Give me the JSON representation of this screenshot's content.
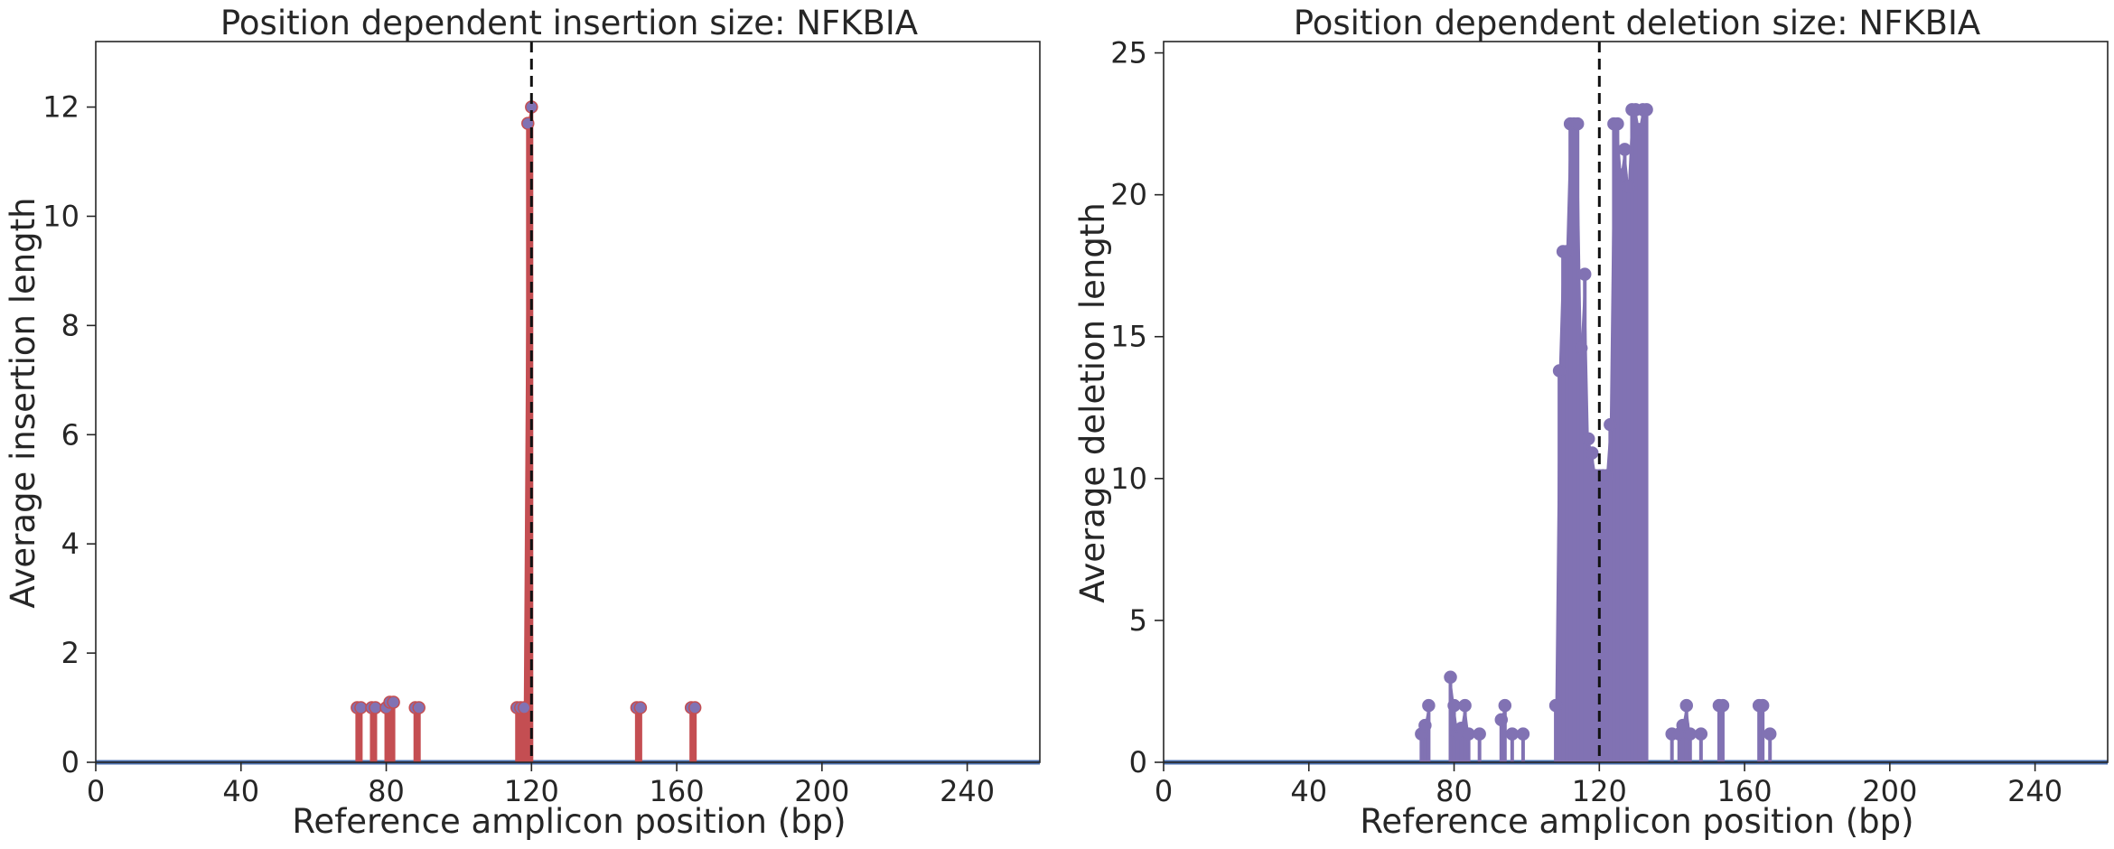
{
  "chart_data": [
    {
      "type": "stem",
      "title": "Position dependent insertion size: NFKBIA",
      "xlabel": "Reference amplicon position (bp)",
      "ylabel": "Average insertion length",
      "xlim": [
        0,
        260
      ],
      "ylim": [
        0,
        13.2
      ],
      "xticks": [
        0,
        40,
        80,
        120,
        160,
        200,
        240
      ],
      "yticks": [
        0,
        2,
        4,
        6,
        8,
        10,
        12
      ],
      "grid": false,
      "cut_position": 120,
      "color": "#c44e52",
      "marker_color": "#8172b3",
      "baseline_color": "#4c72b0",
      "points": [
        {
          "x": 72,
          "y": 1
        },
        {
          "x": 73,
          "y": 1
        },
        {
          "x": 76,
          "y": 1
        },
        {
          "x": 77,
          "y": 1
        },
        {
          "x": 80,
          "y": 1
        },
        {
          "x": 81,
          "y": 1.1
        },
        {
          "x": 82,
          "y": 1.1
        },
        {
          "x": 88,
          "y": 1
        },
        {
          "x": 89,
          "y": 1
        },
        {
          "x": 116,
          "y": 1
        },
        {
          "x": 117,
          "y": 1
        },
        {
          "x": 118,
          "y": 1
        },
        {
          "x": 119,
          "y": 11.7
        },
        {
          "x": 120,
          "y": 12
        },
        {
          "x": 149,
          "y": 1
        },
        {
          "x": 150,
          "y": 1
        },
        {
          "x": 164,
          "y": 1
        },
        {
          "x": 165,
          "y": 1
        }
      ]
    },
    {
      "type": "stem",
      "title": "Position dependent deletion size: NFKBIA",
      "xlabel": "Reference amplicon position (bp)",
      "ylabel": "Average deletion length",
      "xlim": [
        0,
        260
      ],
      "ylim": [
        0,
        25.4
      ],
      "xticks": [
        0,
        40,
        80,
        120,
        160,
        200,
        240
      ],
      "yticks": [
        0,
        5,
        10,
        15,
        20,
        25
      ],
      "grid": false,
      "cut_position": 120,
      "color": "#8172b3",
      "marker_color": "#8172b3",
      "baseline_color": "#4c72b0",
      "points": [
        {
          "x": 71,
          "y": 1
        },
        {
          "x": 72,
          "y": 1.3
        },
        {
          "x": 73,
          "y": 2
        },
        {
          "x": 79,
          "y": 3
        },
        {
          "x": 80,
          "y": 2
        },
        {
          "x": 81,
          "y": 1
        },
        {
          "x": 82,
          "y": 1.2
        },
        {
          "x": 83,
          "y": 2
        },
        {
          "x": 84,
          "y": 1
        },
        {
          "x": 87,
          "y": 1
        },
        {
          "x": 93,
          "y": 1.5
        },
        {
          "x": 94,
          "y": 2
        },
        {
          "x": 96,
          "y": 1
        },
        {
          "x": 99,
          "y": 1
        },
        {
          "x": 108,
          "y": 2
        },
        {
          "x": 109,
          "y": 13.8
        },
        {
          "x": 110,
          "y": 18
        },
        {
          "x": 111,
          "y": 18
        },
        {
          "x": 112,
          "y": 22.5
        },
        {
          "x": 113,
          "y": 22.5
        },
        {
          "x": 114,
          "y": 22.5
        },
        {
          "x": 115,
          "y": 14.6
        },
        {
          "x": 116,
          "y": 17.2
        },
        {
          "x": 117,
          "y": 11.4
        },
        {
          "x": 118,
          "y": 10.9
        },
        {
          "x": 119,
          "y": 10.1
        },
        {
          "x": 120,
          "y": 10.1
        },
        {
          "x": 121,
          "y": 10.1
        },
        {
          "x": 122,
          "y": 10.1
        },
        {
          "x": 123,
          "y": 11.9
        },
        {
          "x": 124,
          "y": 22.5
        },
        {
          "x": 125,
          "y": 22.5
        },
        {
          "x": 126,
          "y": 20.7
        },
        {
          "x": 127,
          "y": 21.6
        },
        {
          "x": 128,
          "y": 20.3
        },
        {
          "x": 129,
          "y": 23
        },
        {
          "x": 130,
          "y": 23
        },
        {
          "x": 131,
          "y": 22.3
        },
        {
          "x": 132,
          "y": 23
        },
        {
          "x": 133,
          "y": 23
        },
        {
          "x": 140,
          "y": 1
        },
        {
          "x": 142,
          "y": 1
        },
        {
          "x": 143,
          "y": 1.3
        },
        {
          "x": 144,
          "y": 2
        },
        {
          "x": 145,
          "y": 1
        },
        {
          "x": 148,
          "y": 1
        },
        {
          "x": 153,
          "y": 2
        },
        {
          "x": 154,
          "y": 2
        },
        {
          "x": 164,
          "y": 2
        },
        {
          "x": 165,
          "y": 2
        },
        {
          "x": 167,
          "y": 1
        }
      ]
    }
  ]
}
